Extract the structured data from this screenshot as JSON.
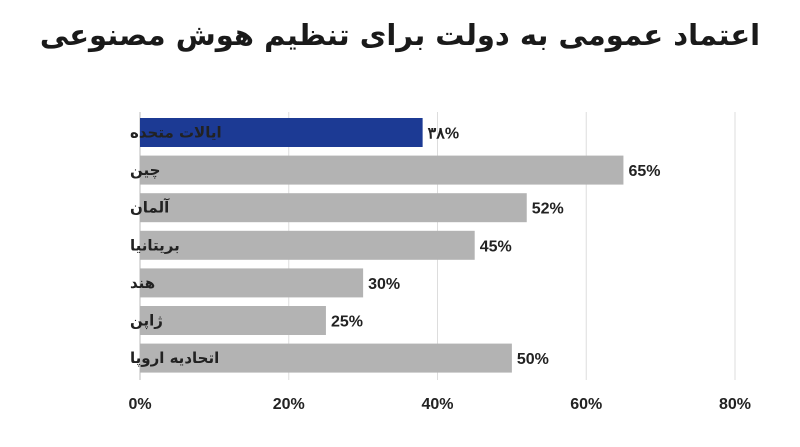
{
  "chart_data": {
    "type": "bar",
    "orientation": "horizontal",
    "title": "اعتماد عمومی به دولت برای تنظیم هوش مصنوعی",
    "categories": [
      "ایالات متحده",
      "چین",
      "آلمان",
      "بریتانیا",
      "هند",
      "ژاپن",
      "اتحادیه اروپا"
    ],
    "values": [
      38,
      65,
      52,
      45,
      30,
      25,
      50
    ],
    "value_labels": [
      "۳۸%",
      "65%",
      "52%",
      "45%",
      "30%",
      "25%",
      "50%"
    ],
    "highlight_index": 0,
    "colors": {
      "highlight": "#1c3a94",
      "default": "#b3b3b3"
    },
    "xlim": [
      0,
      80
    ],
    "x_ticks": [
      0,
      20,
      40,
      60,
      80
    ],
    "x_tick_labels": [
      "0%",
      "20%",
      "40%",
      "60%",
      "80%"
    ],
    "grid": true,
    "xlabel": "",
    "ylabel": ""
  }
}
